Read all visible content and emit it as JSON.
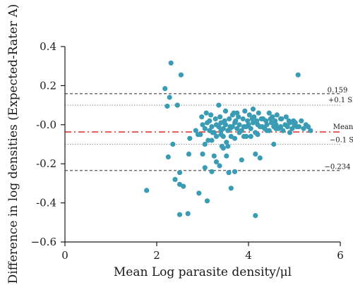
{
  "chart_data": {
    "type": "scatter",
    "title": "",
    "xlabel": "Mean Log parasite density/μl",
    "ylabel": "Difference in log densities (Expected-Rater A)",
    "xlim": [
      0,
      6
    ],
    "ylim": [
      -0.6,
      0.4
    ],
    "xticks": [
      0,
      2,
      4,
      6
    ],
    "xtick_labels": [
      "0",
      "2",
      "4",
      "6"
    ],
    "yticks": [
      0.4,
      0.2,
      0.0,
      -0.2,
      -0.4,
      -0.6
    ],
    "ytick_labels": [
      "0.4",
      "0.2",
      "-0.0",
      "-0.2",
      "-0.4",
      "−0.6"
    ],
    "grid": false,
    "legend": "none",
    "colors": {
      "points": "#3a9cb4",
      "mean_line": "#e63a32",
      "limit_lines": "#707070",
      "sd_lines": "#9a9a9a"
    },
    "reference_lines": [
      {
        "id": "upper-limit",
        "y": 0.159,
        "label": "0.159",
        "style": "dashed"
      },
      {
        "id": "plus-sd",
        "y": 0.1,
        "label": "+0.1 SD",
        "style": "dotted"
      },
      {
        "id": "mean",
        "y": -0.037,
        "label": "Mean",
        "style": "dashdot"
      },
      {
        "id": "minus-sd",
        "y": -0.1,
        "label": "−0.1 SD",
        "style": "dotted"
      },
      {
        "id": "lower-limit",
        "y": -0.234,
        "label": "−0.234",
        "style": "dashed"
      }
    ],
    "x": [
      2.31,
      2.53,
      5.08,
      2.18,
      2.28,
      2.23,
      2.45,
      1.78,
      2.5,
      2.68,
      2.58,
      2.92,
      3.1,
      4.15,
      3.57,
      3.37,
      2.5,
      2.4,
      2.5,
      3.62,
      3.2,
      3.05,
      3.3,
      3.7,
      4.15,
      3.52,
      2.7,
      3.0,
      3.25,
      3.45,
      3.55,
      3.85,
      4.25,
      4.55,
      3.05,
      3.12,
      3.3,
      3.4,
      3.42,
      3.52,
      3.62,
      3.7,
      3.8,
      3.9,
      4.05,
      3.2,
      3.45,
      2.25,
      2.35,
      2.72,
      2.9,
      3.22,
      3.4,
      3.6,
      3.95,
      4.2,
      4.4,
      4.6,
      4.9,
      2.85,
      2.95,
      3.05,
      3.15,
      3.25,
      3.35,
      3.45,
      3.55,
      3.65,
      3.75,
      3.85,
      3.95,
      4.05,
      4.15,
      4.25,
      4.35,
      4.45,
      4.55,
      4.65,
      4.75,
      4.85,
      4.95,
      5.05,
      5.2,
      5.35,
      3.0,
      3.1,
      3.2,
      3.3,
      3.4,
      3.5,
      3.6,
      3.7,
      3.8,
      3.9,
      4.0,
      4.1,
      4.2,
      4.3,
      4.4,
      4.5,
      4.6,
      4.7,
      4.8,
      4.9,
      5.0,
      5.1,
      5.25,
      3.15,
      3.28,
      3.48,
      3.58,
      3.72,
      3.88,
      3.98,
      4.08,
      4.18,
      4.28,
      4.38,
      4.48,
      4.58,
      4.7,
      4.88,
      5.02,
      5.15,
      5.3,
      2.98,
      3.18,
      3.38,
      3.65,
      3.78,
      4.02,
      4.12,
      4.32,
      4.52,
      4.72,
      4.98,
      3.08,
      3.5,
      3.68,
      3.92,
      4.22,
      4.62,
      4.82,
      3.35,
      3.75,
      4.1,
      4.45
    ],
    "y": [
      0.316,
      0.255,
      0.255,
      0.185,
      0.14,
      0.095,
      0.1,
      -0.336,
      -0.46,
      -0.455,
      -0.315,
      -0.35,
      -0.39,
      -0.465,
      -0.245,
      -0.21,
      -0.245,
      -0.28,
      -0.305,
      -0.325,
      -0.24,
      -0.22,
      -0.19,
      -0.24,
      -0.15,
      -0.16,
      -0.15,
      -0.15,
      -0.16,
      -0.12,
      -0.11,
      -0.18,
      -0.17,
      -0.1,
      -0.1,
      -0.08,
      -0.06,
      -0.05,
      -0.11,
      -0.09,
      -0.06,
      -0.07,
      -0.04,
      -0.06,
      -0.06,
      -0.08,
      -0.06,
      -0.165,
      -0.1,
      -0.07,
      -0.05,
      -0.04,
      -0.03,
      -0.02,
      -0.06,
      -0.05,
      -0.03,
      -0.02,
      -0.04,
      -0.03,
      -0.05,
      -0.02,
      -0.03,
      -0.04,
      -0.01,
      -0.02,
      -0.03,
      -0.01,
      -0.02,
      -0.03,
      -0.01,
      -0.02,
      -0.04,
      -0.01,
      -0.02,
      -0.03,
      -0.01,
      -0.02,
      -0.03,
      -0.01,
      -0.02,
      -0.01,
      -0.02,
      -0.03,
      0.0,
      0.01,
      -0.01,
      0.0,
      0.01,
      0.0,
      -0.01,
      0.01,
      0.0,
      -0.01,
      0.0,
      0.01,
      0.0,
      -0.01,
      0.0,
      0.01,
      0.0,
      -0.01,
      0.0,
      0.01,
      0.0,
      -0.01,
      0.0,
      0.02,
      0.03,
      0.02,
      0.03,
      0.02,
      0.03,
      0.02,
      0.03,
      0.02,
      0.03,
      0.02,
      0.03,
      0.02,
      0.03,
      0.02,
      0.01,
      0.02,
      -0.01,
      0.04,
      0.05,
      0.04,
      0.05,
      0.04,
      0.05,
      0.04,
      0.03,
      0.04,
      0.03,
      0.02,
      0.06,
      0.07,
      0.06,
      0.07,
      0.06,
      0.05,
      0.04,
      0.1,
      0.06,
      0.08,
      0.06
    ]
  }
}
